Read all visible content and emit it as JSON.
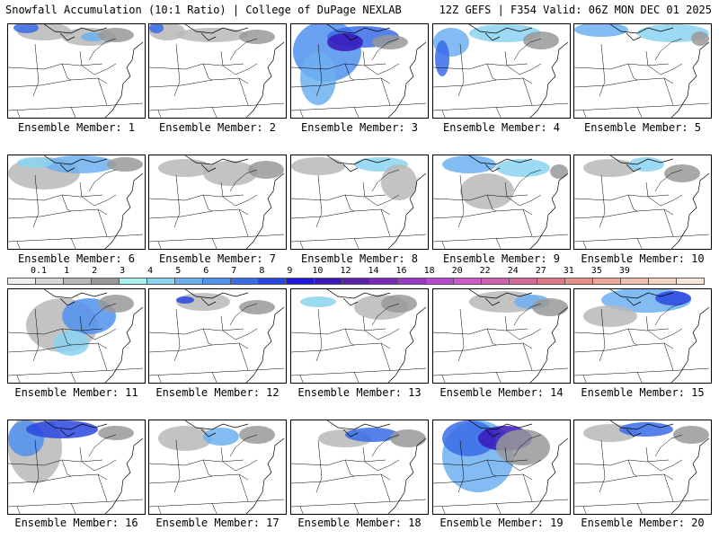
{
  "header": {
    "left": "Snowfall Accumulation (10:1 Ratio) | College of DuPage NEXLAB",
    "right": "12Z GEFS | F354 Valid: 06Z MON DEC 01 2025"
  },
  "colorbar": {
    "labels": [
      "0.1",
      "1",
      "2",
      "3",
      "4",
      "5",
      "6",
      "7",
      "8",
      "9",
      "10",
      "12",
      "14",
      "16",
      "18",
      "20",
      "22",
      "24",
      "27",
      "31",
      "35",
      "39"
    ],
    "colors": [
      "#f0f0f0",
      "#d8d8d8",
      "#b8b8b8",
      "#999999",
      "#a8f0f0",
      "#8ad4f0",
      "#6cb0f0",
      "#5090ee",
      "#3a6ce8",
      "#2a46e0",
      "#2018d8",
      "#3a18b8",
      "#5a20a8",
      "#7a28b8",
      "#9a38c8",
      "#b848d0",
      "#d058c8",
      "#d060b0",
      "#d86898",
      "#e07888",
      "#e89088",
      "#eca898",
      "#f0c0b0",
      "#f4d4c4",
      "#f8e8d8"
    ]
  },
  "members": [
    {
      "label": "Ensemble Member: 1"
    },
    {
      "label": "Ensemble Member: 2"
    },
    {
      "label": "Ensemble Member: 3"
    },
    {
      "label": "Ensemble Member: 4"
    },
    {
      "label": "Ensemble Member: 5"
    },
    {
      "label": "Ensemble Member: 6"
    },
    {
      "label": "Ensemble Member: 7"
    },
    {
      "label": "Ensemble Member: 8"
    },
    {
      "label": "Ensemble Member: 9"
    },
    {
      "label": "Ensemble Member: 10"
    },
    {
      "label": "Ensemble Member: 11"
    },
    {
      "label": "Ensemble Member: 12"
    },
    {
      "label": "Ensemble Member: 13"
    },
    {
      "label": "Ensemble Member: 14"
    },
    {
      "label": "Ensemble Member: 15"
    },
    {
      "label": "Ensemble Member: 16"
    },
    {
      "label": "Ensemble Member: 17"
    },
    {
      "label": "Ensemble Member: 18"
    },
    {
      "label": "Ensemble Member: 19"
    },
    {
      "label": "Ensemble Member: 20"
    }
  ]
}
